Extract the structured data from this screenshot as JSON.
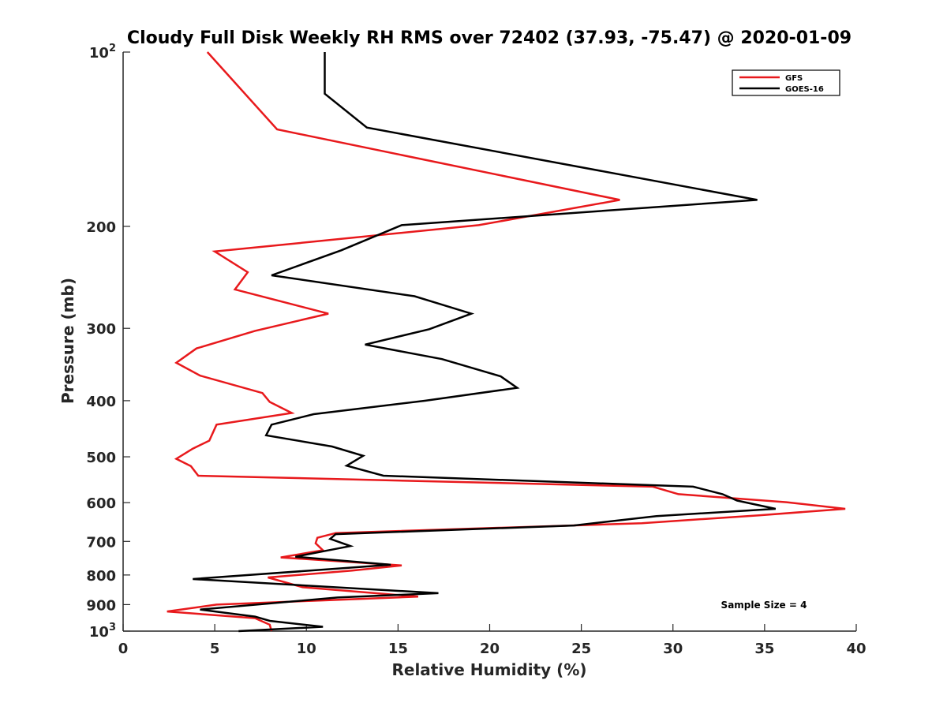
{
  "chart_data": {
    "type": "line",
    "title": "Cloudy Full Disk Weekly RH RMS over 72402 (37.93, -75.47) @ 2020-01-09",
    "xlabel": "Relative Humidity (%)",
    "ylabel": "Pressure (mb)",
    "xlim": [
      0,
      40
    ],
    "ylim": [
      100,
      1000
    ],
    "yscale": "log",
    "y_reversed": true,
    "grid": false,
    "legend_position": "top-right",
    "x_ticks": [
      0,
      5,
      10,
      15,
      20,
      25,
      30,
      35,
      40
    ],
    "y_ticks": [
      {
        "value": 100,
        "base": "10",
        "exp": "2"
      },
      {
        "value": 200,
        "label": "200"
      },
      {
        "value": 300,
        "label": "300"
      },
      {
        "value": 400,
        "label": "400"
      },
      {
        "value": 500,
        "label": "500"
      },
      {
        "value": 600,
        "label": "600"
      },
      {
        "value": 700,
        "label": "700"
      },
      {
        "value": 800,
        "label": "800"
      },
      {
        "value": 900,
        "label": "900"
      },
      {
        "value": 1000,
        "base": "10",
        "exp": "3"
      }
    ],
    "annotation": "Sample Size = 4",
    "series": [
      {
        "name": "GFS",
        "color": "#e8191c",
        "points": [
          [
            4.6,
            100
          ],
          [
            8.4,
            136
          ],
          [
            27.1,
            180
          ],
          [
            19.4,
            199
          ],
          [
            5.0,
            221
          ],
          [
            6.8,
            240
          ],
          [
            6.1,
            257
          ],
          [
            11.2,
            283
          ],
          [
            7.2,
            303
          ],
          [
            4.0,
            325
          ],
          [
            2.9,
            344
          ],
          [
            4.2,
            362
          ],
          [
            7.6,
            388
          ],
          [
            8.0,
            402
          ],
          [
            9.2,
            420
          ],
          [
            5.1,
            440
          ],
          [
            4.7,
            469
          ],
          [
            3.8,
            484
          ],
          [
            2.9,
            504
          ],
          [
            3.7,
            519
          ],
          [
            4.1,
            539
          ],
          [
            28.9,
            563
          ],
          [
            30.3,
            580
          ],
          [
            36.2,
            599
          ],
          [
            39.4,
            615
          ],
          [
            34.7,
            631
          ],
          [
            28.3,
            651
          ],
          [
            11.6,
            677
          ],
          [
            10.6,
            690
          ],
          [
            10.5,
            705
          ],
          [
            10.9,
            725
          ],
          [
            8.6,
            746
          ],
          [
            15.2,
            770
          ],
          [
            12.5,
            786
          ],
          [
            7.9,
            808
          ],
          [
            9.8,
            840
          ],
          [
            16.1,
            872
          ],
          [
            5.1,
            900
          ],
          [
            2.4,
            925
          ],
          [
            7.2,
            950
          ],
          [
            8.0,
            975
          ],
          [
            8.1,
            1000
          ]
        ]
      },
      {
        "name": "GOES-16",
        "color": "#000000",
        "points": [
          [
            11.0,
            100
          ],
          [
            11.0,
            118
          ],
          [
            13.3,
            135
          ],
          [
            34.6,
            180
          ],
          [
            15.2,
            199
          ],
          [
            11.9,
            220
          ],
          [
            8.1,
            243
          ],
          [
            15.9,
            264
          ],
          [
            19.0,
            283
          ],
          [
            16.7,
            301
          ],
          [
            13.2,
            320
          ],
          [
            17.4,
            339
          ],
          [
            20.6,
            363
          ],
          [
            21.5,
            380
          ],
          [
            16.5,
            400
          ],
          [
            10.4,
            422
          ],
          [
            8.1,
            440
          ],
          [
            7.8,
            459
          ],
          [
            11.4,
            480
          ],
          [
            13.1,
            498
          ],
          [
            12.2,
            518
          ],
          [
            14.2,
            539
          ],
          [
            31.1,
            563
          ],
          [
            32.7,
            580
          ],
          [
            33.5,
            595
          ],
          [
            35.6,
            615
          ],
          [
            29.1,
            633
          ],
          [
            24.6,
            657
          ],
          [
            11.6,
            680
          ],
          [
            11.3,
            693
          ],
          [
            12.4,
            713
          ],
          [
            9.4,
            744
          ],
          [
            14.6,
            768
          ],
          [
            3.8,
            813
          ],
          [
            17.2,
            860
          ],
          [
            11.7,
            875
          ],
          [
            4.2,
            918
          ],
          [
            7.2,
            944
          ],
          [
            8.0,
            960
          ],
          [
            10.9,
            983
          ],
          [
            6.3,
            1000
          ]
        ]
      }
    ]
  }
}
